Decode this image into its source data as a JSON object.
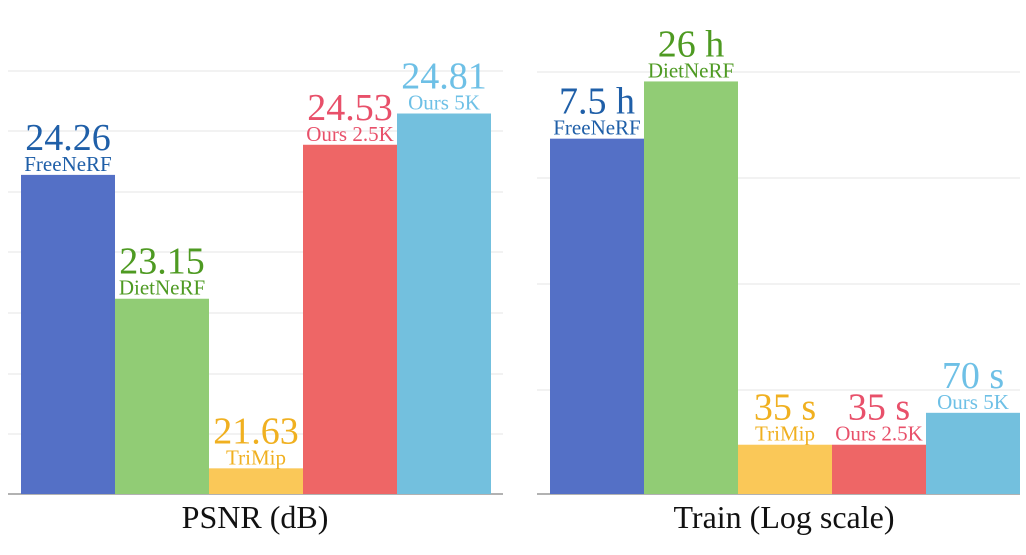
{
  "chart_data": [
    {
      "type": "bar",
      "xlabel": "PSNR (dB)",
      "ylim": [
        21.4,
        25.2
      ],
      "grid": true,
      "categories": [
        "FreeNeRF",
        "DietNeRF",
        "TriMip",
        "Ours 2.5K",
        "Ours 5K"
      ],
      "values": [
        24.26,
        23.15,
        21.63,
        24.53,
        24.81
      ],
      "value_labels": [
        "24.26",
        "23.15",
        "21.63",
        "24.53",
        "24.81"
      ]
    },
    {
      "type": "bar",
      "xlabel": "Train (Log scale)",
      "log_scale": true,
      "unit": "seconds",
      "grid": true,
      "categories": [
        "FreeNeRF",
        "DietNeRF",
        "TriMip",
        "Ours 2.5K",
        "Ours 5K"
      ],
      "values": [
        27000,
        93600,
        35,
        35,
        70
      ],
      "value_labels": [
        "7.5 h",
        "26 h",
        "35 s",
        "35 s",
        "70 s"
      ]
    }
  ],
  "colors": {
    "bars": [
      "#5470C6",
      "#91CC75",
      "#FAC858",
      "#EE6666",
      "#73C0DE"
    ],
    "labels": [
      "#1F5FA8",
      "#4E9A22",
      "#F0B020",
      "#E8506A",
      "#6EC0E6"
    ],
    "grid": "#E6E6E6",
    "axis": "#999999"
  }
}
